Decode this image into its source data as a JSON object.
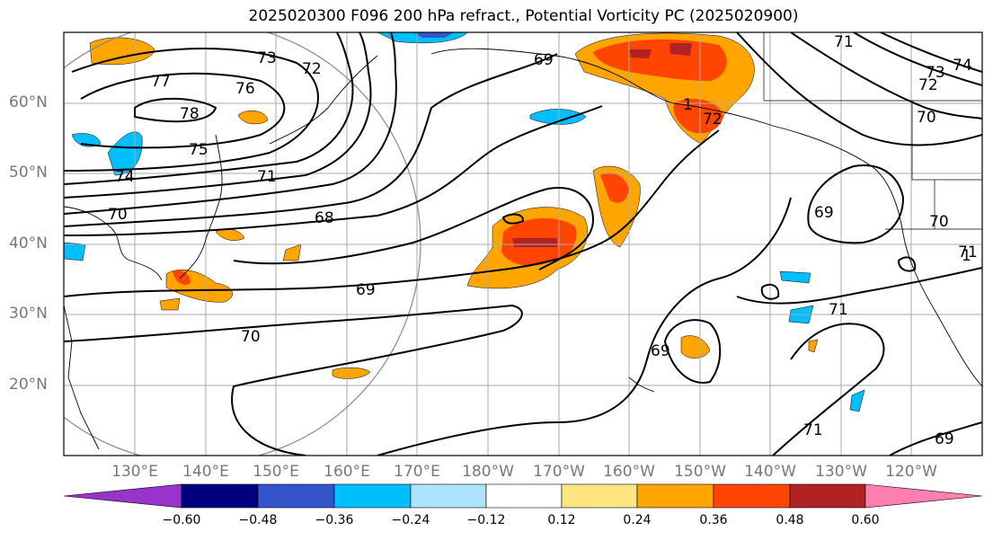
{
  "title": "2025020300 F096 200 hPa refract., Potential Vorticity PC (2025020900)",
  "lat_labels": [
    "60°N",
    "50°N",
    "40°N",
    "30°N",
    "20°N"
  ],
  "lon_labels": [
    "130°E",
    "140°E",
    "150°E",
    "160°E",
    "170°E",
    "180°W",
    "170°W",
    "160°W",
    "150°W",
    "140°W",
    "130°W",
    "120°W"
  ],
  "colorbar": {
    "ticks": [
      "−0.60",
      "−0.48",
      "−0.36",
      "−0.24",
      "−0.12",
      "0.12",
      "0.24",
      "0.36",
      "0.48",
      "0.60"
    ],
    "colors": [
      "#9933cc",
      "#000080",
      "#3355cc",
      "#00bfff",
      "#aee2ff",
      "#ffffff",
      "#ffe680",
      "#ffa500",
      "#ff4500",
      "#b22222",
      "#ff80b0"
    ]
  },
  "contour_labels": [
    "77",
    "73",
    "72",
    "76",
    "78",
    "75",
    "74",
    "71",
    "70",
    "68",
    "69",
    "69",
    "70",
    "69",
    "72",
    "71",
    "73",
    "74",
    "72",
    "70",
    "69",
    "70",
    "71",
    "69",
    "71",
    "71",
    "1",
    "1"
  ],
  "colors": {
    "positive_strong": "#ff4500",
    "positive": "#ffa500",
    "positive_weak": "#ffe680",
    "negative": "#00bfff",
    "negative_strong": "#000080",
    "very_high": "#b22222"
  }
}
